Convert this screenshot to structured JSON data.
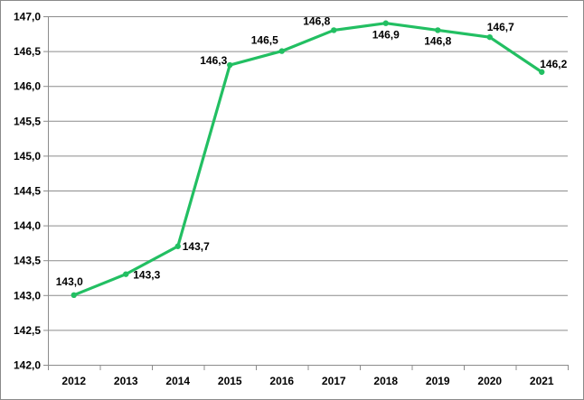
{
  "chart_data": {
    "type": "line",
    "title": "",
    "xlabel": "",
    "ylabel": "",
    "categories": [
      "2012",
      "2013",
      "2014",
      "2015",
      "2016",
      "2017",
      "2018",
      "2019",
      "2020",
      "2021"
    ],
    "series": [
      {
        "name": "",
        "values": [
          143.0,
          143.3,
          143.7,
          146.3,
          146.5,
          146.8,
          146.9,
          146.8,
          146.7,
          146.2
        ],
        "labels": [
          "143,0",
          "143,3",
          "143,7",
          "146,3",
          "146,5",
          "146,8",
          "146,9",
          "146,8",
          "146,7",
          "146,2"
        ],
        "color": "#22bf62"
      }
    ],
    "ylim": [
      142.0,
      147.0
    ],
    "ystep": 0.5,
    "ytick_labels": [
      "142,0",
      "142,5",
      "143,0",
      "143,5",
      "144,0",
      "144,5",
      "145,0",
      "145,5",
      "146,0",
      "146,5",
      "147,0"
    ],
    "grid": true,
    "legend": "none",
    "colors": {
      "line": "#22bf62",
      "grid": "#8c8c8c",
      "axis": "#8c8c8c",
      "text": "#000000"
    }
  }
}
